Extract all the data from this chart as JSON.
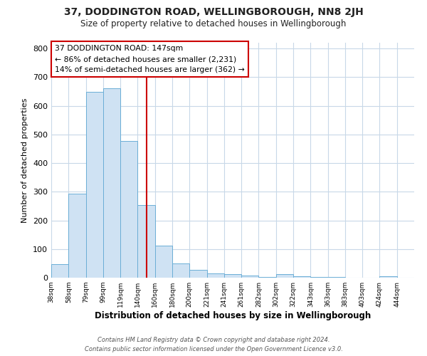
{
  "title": "37, DODDINGTON ROAD, WELLINGBOROUGH, NN8 2JH",
  "subtitle": "Size of property relative to detached houses in Wellingborough",
  "xlabel": "Distribution of detached houses by size in Wellingborough",
  "ylabel": "Number of detached properties",
  "bar_labels": [
    "38sqm",
    "58sqm",
    "79sqm",
    "99sqm",
    "119sqm",
    "140sqm",
    "160sqm",
    "180sqm",
    "200sqm",
    "221sqm",
    "241sqm",
    "261sqm",
    "282sqm",
    "302sqm",
    "322sqm",
    "343sqm",
    "363sqm",
    "383sqm",
    "403sqm",
    "424sqm",
    "444sqm"
  ],
  "bar_values": [
    48,
    293,
    648,
    660,
    476,
    253,
    113,
    49,
    27,
    14,
    13,
    8,
    3,
    13,
    4,
    2,
    2,
    1,
    1,
    5,
    0
  ],
  "bar_color": "#cfe2f3",
  "bar_edge_color": "#6baed6",
  "red_line_x": 5.5,
  "red_line_label": "37 DODDINGTON ROAD: 147sqm",
  "annotation_line1": "← 86% of detached houses are smaller (2,231)",
  "annotation_line2": "14% of semi-detached houses are larger (362) →",
  "vline_color": "#cc0000",
  "box_edge_color": "#cc0000",
  "ylim": [
    0,
    820
  ],
  "yticks": [
    0,
    100,
    200,
    300,
    400,
    500,
    600,
    700,
    800
  ],
  "footer1": "Contains HM Land Registry data © Crown copyright and database right 2024.",
  "footer2": "Contains public sector information licensed under the Open Government Licence v3.0.",
  "bg_color": "#ffffff",
  "plot_bg_color": "#ffffff",
  "grid_color": "#c8d8e8"
}
